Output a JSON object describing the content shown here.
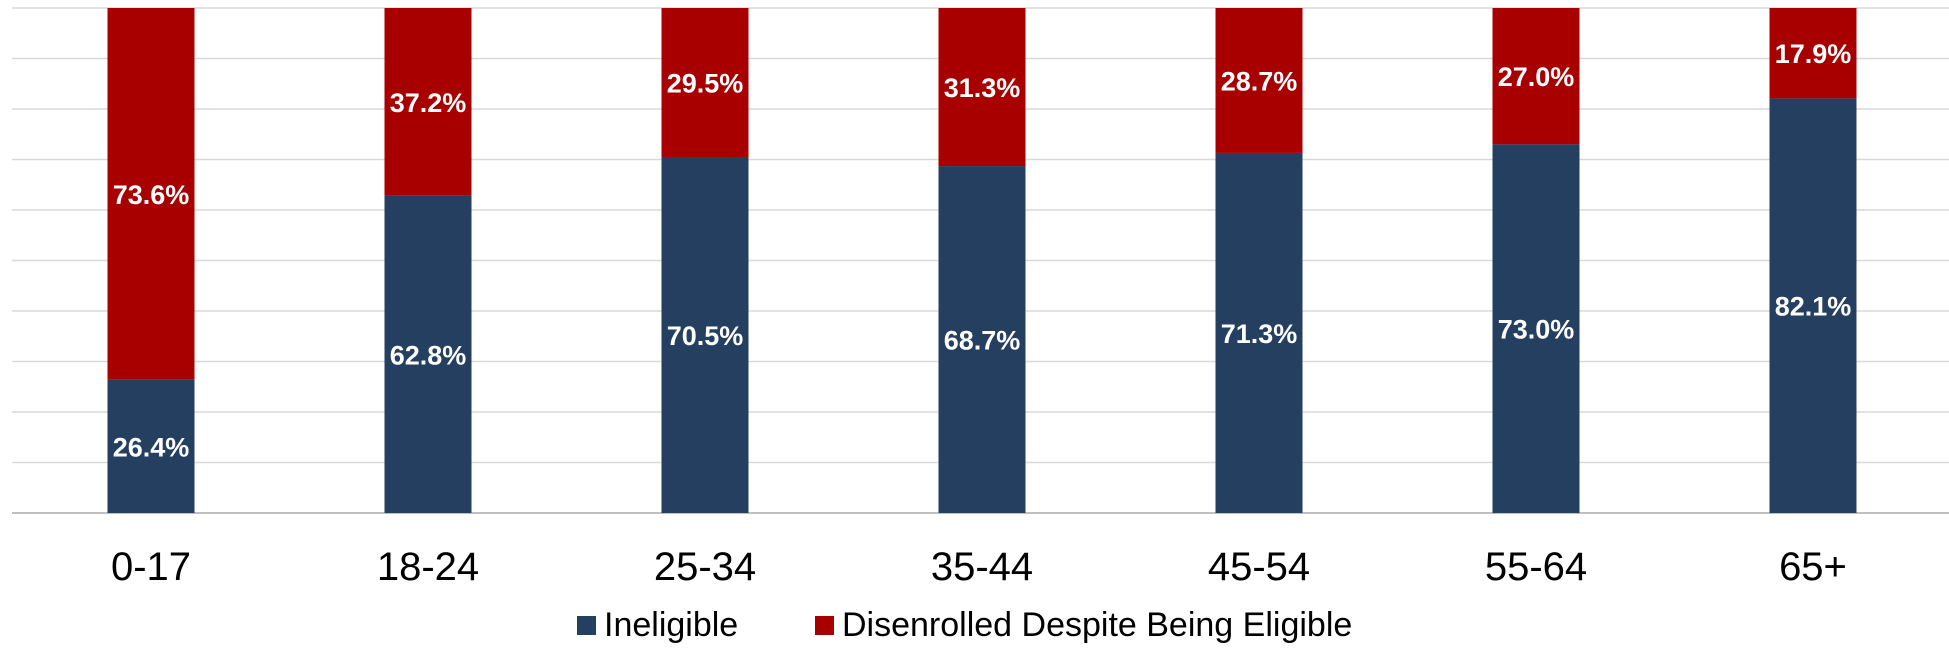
{
  "chart_data": {
    "type": "bar",
    "stacked": true,
    "categories": [
      "0-17",
      "18-24",
      "25-34",
      "35-44",
      "45-54",
      "55-64",
      "65+"
    ],
    "series": [
      {
        "name": "Ineligible",
        "color": "#243f60",
        "values": [
          26.4,
          62.8,
          70.5,
          68.7,
          71.3,
          73.0,
          82.1
        ],
        "labels": [
          "26.4%",
          "62.8%",
          "70.5%",
          "68.7%",
          "71.3%",
          "73.0%",
          "82.1%"
        ]
      },
      {
        "name": "Disenrolled Despite Being Eligible",
        "color": "#a80000",
        "values": [
          73.6,
          37.2,
          29.5,
          31.3,
          28.7,
          27.0,
          17.9
        ],
        "labels": [
          "73.6%",
          "37.2%",
          "29.5%",
          "31.3%",
          "28.7%",
          "27.0%",
          "17.9%"
        ]
      }
    ],
    "ylim": [
      0,
      100
    ],
    "grid": true,
    "legend": "bottom"
  }
}
